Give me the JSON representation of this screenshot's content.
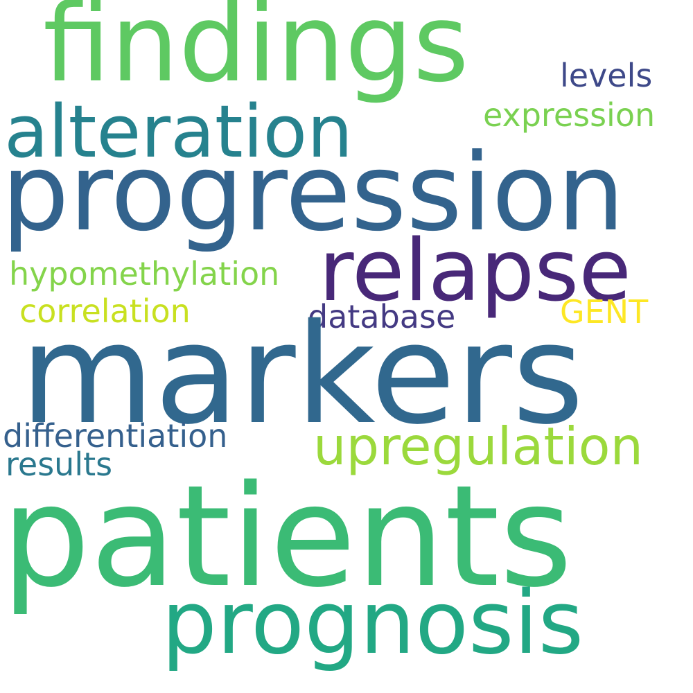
{
  "words": [
    {
      "text": "findings",
      "color": "#5ec962"
    },
    {
      "text": "alteration",
      "color": "#26828e"
    },
    {
      "text": "progression",
      "color": "#33638d"
    },
    {
      "text": "relapse",
      "color": "#482878"
    },
    {
      "text": "levels",
      "color": "#3e4989"
    },
    {
      "text": "expression",
      "color": "#7ad151"
    },
    {
      "text": "hypomethylation",
      "color": "#84d44b"
    },
    {
      "text": "correlation",
      "color": "#c8e020"
    },
    {
      "text": "database",
      "color": "#443a83"
    },
    {
      "text": "GENT",
      "color": "#fde725"
    },
    {
      "text": "markers",
      "color": "#31688e"
    },
    {
      "text": "differentiation",
      "color": "#35608d"
    },
    {
      "text": "upregulation",
      "color": "#9bd93c"
    },
    {
      "text": "results",
      "color": "#2a788e"
    },
    {
      "text": "patients",
      "color": "#3bbb75"
    },
    {
      "text": "prognosis",
      "color": "#22a884"
    }
  ]
}
